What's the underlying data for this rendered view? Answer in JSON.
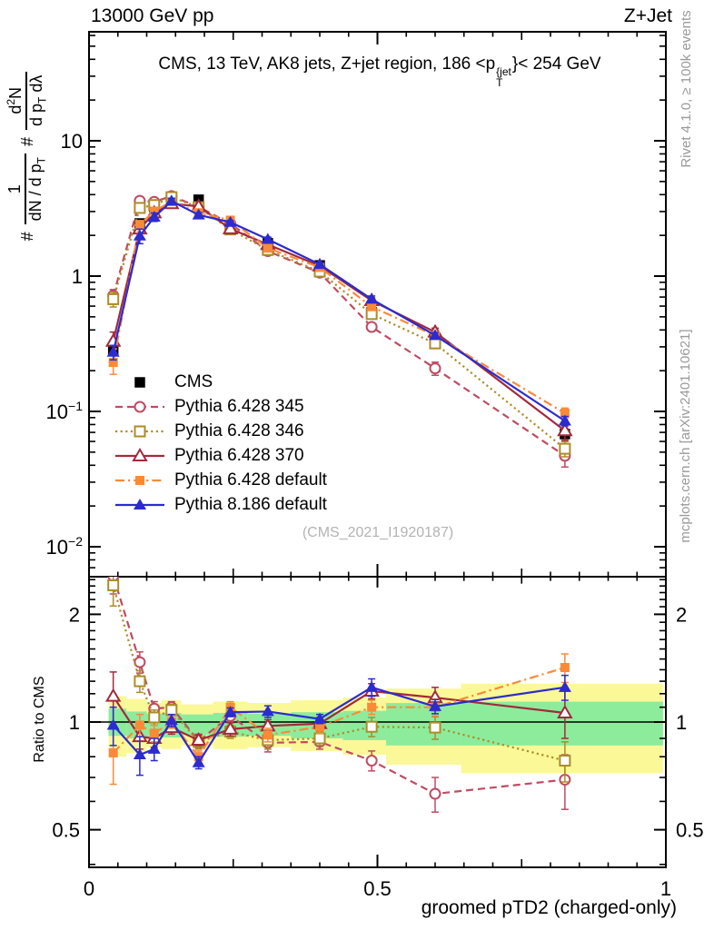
{
  "header": {
    "beam": "13000 GeV pp",
    "process": "Z+Jet"
  },
  "panel_title": {
    "prefix": "CMS, 13 TeV, AK8 jets, Z+jet region, 186 <p",
    "sup": "{jet",
    "sub": "T",
    "suffix": "}< 254 GeV"
  },
  "side_notes": {
    "generator_note": "Rivet 4.1.0, ≥ 100k events",
    "site_note": "mcplots.cern.ch [arXiv:2401.10621]"
  },
  "watermark": "(CMS_2021_I1920187)",
  "y_axis_label": {
    "hash1": "#",
    "num1": "1",
    "den1": {
      "pre": "dN / d p",
      "sub": "T"
    },
    "hash2": "#",
    "num2": {
      "pre": "d",
      "sup": "2",
      "post": "N"
    },
    "den2": {
      "pre": "d p",
      "sub": "T",
      "post": " dλ"
    }
  },
  "ratio_axis_label": "Ratio to CMS",
  "x_axis": {
    "title": "groomed pTD2 (charged-only)",
    "tick_labels": [
      {
        "v": 0,
        "t": "0"
      },
      {
        "v": 0.5,
        "t": "0.5"
      },
      {
        "v": 1,
        "t": "1"
      }
    ]
  },
  "main_y_axis": {
    "tick_labels": [
      {
        "v": 10,
        "base": "10",
        "exp": ""
      },
      {
        "v": 1,
        "base": "1",
        "exp": ""
      },
      {
        "v": 0.1,
        "base": "10",
        "exp": "−1"
      },
      {
        "v": 0.01,
        "base": "10",
        "exp": "−2"
      }
    ]
  },
  "ratio_y_axis": {
    "tick_labels": [
      {
        "v": 2,
        "t": "2"
      },
      {
        "v": 1,
        "t": "1"
      },
      {
        "v": 0.5,
        "t": "0.5"
      }
    ]
  },
  "colors": {
    "band_yellow": "#fbf897",
    "band_green": "#8cec9c",
    "gray_text": "#999999",
    "watermark": "#b3b3b3",
    "frame": "#000000"
  },
  "chart_data": {
    "type": "line",
    "title": "CMS, 13 TeV, AK8 jets, Z+jet region, 186 < pT^jet < 254 GeV",
    "xlabel": "groomed pTD2 (charged-only)",
    "ylabel_main": "# 1/(dN/dpT) d2N/(dpT dλ)",
    "ylabel_ratio": "Ratio to CMS",
    "x_scale": "linear",
    "y_scale_main": "log",
    "y_scale_ratio": "log",
    "xlim": [
      0,
      1.0
    ],
    "main_ylim": [
      0.006,
      63
    ],
    "ratio_ylim": [
      0.392,
      2.55
    ],
    "legend_position": "inside-left",
    "x": [
      0.042,
      0.088,
      0.113,
      0.143,
      0.19,
      0.245,
      0.31,
      0.4,
      0.49,
      0.6,
      0.825
    ],
    "bin_edges": [
      0.034,
      0.065,
      0.1,
      0.126,
      0.16,
      0.215,
      0.275,
      0.35,
      0.44,
      0.515,
      0.645,
      0.995
    ],
    "cms": {
      "label": "CMS",
      "marker": "square-filled",
      "color": "#000000",
      "err_frac": 0.05,
      "values": [
        0.28,
        2.45,
        3.25,
        3.55,
        3.67,
        2.35,
        1.75,
        1.2,
        0.54,
        0.33,
        0.068
      ]
    },
    "series": [
      {
        "label": "Pythia 6.428 345",
        "color": "#bf4b62",
        "line": "dashed",
        "marker": "circle-open",
        "values": [
          0.717,
          3.6,
          3.54,
          3.9,
          3.25,
          2.44,
          1.53,
          1.06,
          0.421,
          0.208,
          0.047
        ],
        "ratio": [
          2.56,
          1.47,
          1.09,
          1.1,
          0.885,
          1.04,
          0.875,
          0.88,
          0.78,
          0.63,
          0.69
        ],
        "ratio_err": [
          0.28,
          0.1,
          0.05,
          0.04,
          0.04,
          0.04,
          0.05,
          0.04,
          0.05,
          0.07,
          0.12
        ]
      },
      {
        "label": "Pythia 6.428 346",
        "color": "#ac8c2a",
        "line": "dotted",
        "marker": "square-open",
        "values": [
          0.675,
          3.19,
          3.35,
          3.83,
          3.23,
          2.21,
          1.56,
          1.08,
          0.524,
          0.318,
          0.053
        ],
        "ratio": [
          2.41,
          1.3,
          1.03,
          1.08,
          0.88,
          0.94,
          0.89,
          0.9,
          0.97,
          0.965,
          0.78
        ],
        "ratio_err": [
          0.3,
          0.09,
          0.05,
          0.04,
          0.04,
          0.04,
          0.05,
          0.04,
          0.06,
          0.07,
          0.1
        ]
      },
      {
        "label": "Pythia 6.428 370",
        "color": "#a22a3c",
        "line": "solid",
        "marker": "triangle-open",
        "values": [
          0.33,
          2.23,
          2.93,
          3.43,
          3.27,
          2.24,
          1.71,
          1.19,
          0.659,
          0.386,
          0.072
        ],
        "ratio": [
          1.18,
          0.91,
          0.9,
          0.965,
          0.89,
          0.955,
          0.975,
          0.99,
          1.22,
          1.17,
          1.06
        ],
        "ratio_err": [
          0.2,
          0.07,
          0.05,
          0.04,
          0.03,
          0.04,
          0.04,
          0.04,
          0.06,
          0.08,
          0.16
        ]
      },
      {
        "label": "Pythia 6.428 default",
        "color": "#fa8a38",
        "line": "dashdot",
        "marker": "square-filled",
        "values": [
          0.23,
          2.4,
          3.02,
          3.55,
          2.94,
          2.59,
          1.61,
          1.16,
          0.594,
          0.363,
          0.097
        ],
        "ratio": [
          0.82,
          0.98,
          0.93,
          1.0,
          0.8,
          1.1,
          0.92,
          0.97,
          1.1,
          1.1,
          1.42
        ],
        "ratio_err": [
          0.15,
          0.07,
          0.05,
          0.04,
          0.03,
          0.04,
          0.04,
          0.04,
          0.05,
          0.06,
          0.13
        ]
      },
      {
        "label": "Pythia 8.186 default",
        "color": "#2b2bd0",
        "line": "solid",
        "marker": "triangle-filled",
        "values": [
          0.274,
          1.98,
          2.73,
          3.59,
          2.83,
          2.5,
          1.87,
          1.22,
          0.675,
          0.365,
          0.085
        ],
        "ratio": [
          0.98,
          0.81,
          0.84,
          1.01,
          0.77,
          1.065,
          1.07,
          1.02,
          1.25,
          1.105,
          1.25
        ],
        "ratio_err": [
          0.12,
          0.1,
          0.06,
          0.04,
          0.03,
          0.03,
          0.04,
          0.03,
          0.07,
          0.05,
          0.1
        ]
      }
    ],
    "bands": {
      "yellow_hi": [
        1.18,
        1.16,
        1.13,
        1.15,
        1.12,
        1.14,
        1.13,
        1.15,
        1.17,
        1.24,
        1.28
      ],
      "yellow_lo": [
        0.8,
        0.82,
        0.85,
        0.84,
        0.86,
        0.84,
        0.85,
        0.83,
        0.81,
        0.76,
        0.72
      ],
      "green_hi": [
        1.09,
        1.07,
        1.055,
        1.06,
        1.05,
        1.06,
        1.055,
        1.065,
        1.075,
        1.13,
        1.14
      ],
      "green_lo": [
        0.915,
        0.9,
        0.91,
        0.905,
        0.92,
        0.91,
        0.915,
        0.9,
        0.89,
        0.86,
        0.86
      ]
    }
  }
}
